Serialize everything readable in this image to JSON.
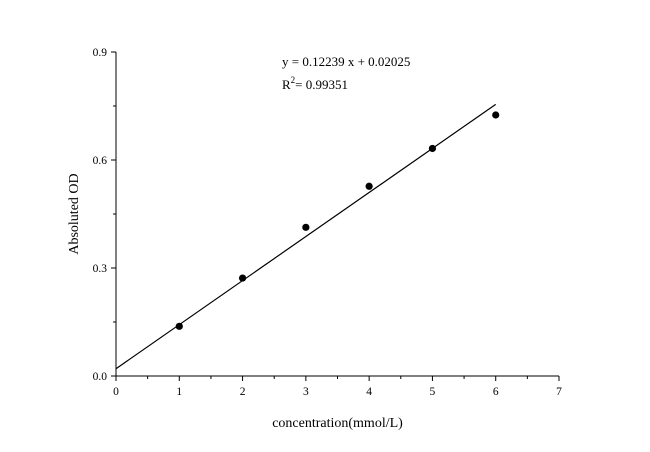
{
  "chart_data": {
    "type": "scatter",
    "xlabel": "concentration(mmol/L)",
    "ylabel": "Absoluted OD",
    "xlim": [
      0,
      7
    ],
    "ylim": [
      0,
      0.9
    ],
    "x_ticks": [
      0,
      1,
      2,
      3,
      4,
      5,
      6,
      7
    ],
    "x_tick_labels": [
      "0",
      "1",
      "2",
      "3",
      "4",
      "5",
      "6",
      "7"
    ],
    "y_ticks": [
      0.0,
      0.3,
      0.6,
      0.9
    ],
    "y_tick_labels": [
      "0.0",
      "0.3",
      "0.6",
      "0.9"
    ],
    "grid": false,
    "series": [
      {
        "x": [
          1,
          2,
          3,
          4,
          5,
          6
        ],
        "y": [
          0.138,
          0.272,
          0.413,
          0.527,
          0.632,
          0.725
        ],
        "color": "#000000"
      }
    ],
    "fit_line": {
      "slope": 0.12239,
      "intercept": 0.02025,
      "x_range": [
        0,
        6
      ],
      "color": "#000000"
    },
    "annotations": {
      "equation": "y = 0.12239 x + 0.02025",
      "r2_prefix": "R",
      "r2_sup": "2",
      "r2_value": "= 0.99351"
    }
  }
}
